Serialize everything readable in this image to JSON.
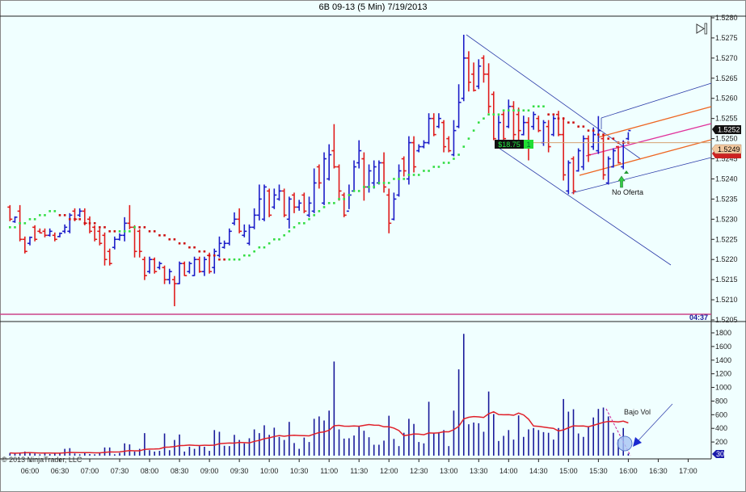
{
  "window": {
    "title": "6B 09-13 (5 Min)  7/19/2013",
    "copyright": "© 2013 NinjaTrader, LLC"
  },
  "colors": {
    "background": "#f0ffff",
    "up_bar": "#1c1cc8",
    "down_bar": "#e01c1c",
    "volume_bar": "#1a1a9a",
    "volume_ma": "#e0202a",
    "trail_up": "#33dd44",
    "trail_down": "#cc1111",
    "session_line": "#cc4488"
  },
  "annotations": {
    "pnl_label": "$18.75",
    "position_qty": "1",
    "last_price_label": "1.5252",
    "entry_price_label": "1.5249",
    "signal_text": "No Oferta",
    "volume_note": "Bajo Vol",
    "bar_timer": "04:37",
    "current_volume_label": "30"
  },
  "chart_data": [
    {
      "type": "ohlc",
      "bar_interval": "5 Min",
      "ylim": [
        1.5205,
        1.528
      ],
      "y_ticks": [
        "1.5280",
        "1.5275",
        "1.5270",
        "1.5265",
        "1.5260",
        "1.5255",
        "1.5250",
        "1.5245",
        "1.5240",
        "1.5235",
        "1.5230",
        "1.5225",
        "1.5220",
        "1.5215",
        "1.5210",
        "1.5205"
      ],
      "x_ticks": [
        "06:00",
        "06:30",
        "07:00",
        "07:30",
        "08:00",
        "08:30",
        "09:00",
        "09:30",
        "10:00",
        "10:30",
        "11:00",
        "11:30",
        "12:00",
        "12:30",
        "13:00",
        "13:30",
        "14:00",
        "14:30",
        "15:00",
        "15:30",
        "16:00",
        "16:30",
        "17:00"
      ],
      "x": [
        "05:40",
        "05:45",
        "05:50",
        "05:55",
        "06:00",
        "06:05",
        "06:10",
        "06:15",
        "06:20",
        "06:25",
        "06:30",
        "06:35",
        "06:40",
        "06:45",
        "06:50",
        "06:55",
        "07:00",
        "07:05",
        "07:10",
        "07:15",
        "07:20",
        "07:25",
        "07:30",
        "07:35",
        "07:40",
        "07:45",
        "07:50",
        "07:55",
        "08:00",
        "08:05",
        "08:10",
        "08:15",
        "08:20",
        "08:25",
        "08:30",
        "08:35",
        "08:40",
        "08:45",
        "08:50",
        "08:55",
        "09:00",
        "09:05",
        "09:10",
        "09:15",
        "09:20",
        "09:25",
        "09:30",
        "09:35",
        "09:40",
        "09:45",
        "09:50",
        "09:55",
        "10:00",
        "10:05",
        "10:10",
        "10:15",
        "10:20",
        "10:25",
        "10:30",
        "10:35",
        "10:40",
        "10:45",
        "10:50",
        "10:55",
        "11:00",
        "11:05",
        "11:10",
        "11:15",
        "11:20",
        "11:25",
        "11:30",
        "11:35",
        "11:40",
        "11:45",
        "11:50",
        "11:55",
        "12:00",
        "12:05",
        "12:10",
        "12:15",
        "12:20",
        "12:25",
        "12:30",
        "12:35",
        "12:40",
        "12:45",
        "12:50",
        "12:55",
        "13:00",
        "13:05",
        "13:10",
        "13:15",
        "13:20",
        "13:25",
        "13:30",
        "13:35",
        "13:40",
        "13:45",
        "13:50",
        "13:55",
        "14:00",
        "14:05",
        "14:10",
        "14:15",
        "14:20",
        "14:25",
        "14:30",
        "14:35",
        "14:40",
        "14:45",
        "14:50",
        "14:55",
        "15:00",
        "15:05",
        "15:10",
        "15:15",
        "15:20",
        "15:25",
        "15:30",
        "15:35",
        "15:40",
        "15:45",
        "15:50",
        "15:55",
        "16:00"
      ],
      "ohlc": [
        [
          1.5233,
          1.52335,
          1.52295,
          1.523
        ],
        [
          1.52294,
          1.52307,
          1.52291,
          1.52305
        ],
        [
          1.5232,
          1.52335,
          1.52245,
          1.5225
        ],
        [
          1.5225,
          1.52257,
          1.52215,
          1.5222
        ],
        [
          1.5224,
          1.52257,
          1.52235,
          1.52255
        ],
        [
          1.5228,
          1.52285,
          1.52245,
          1.5225
        ],
        [
          1.5227,
          1.52277,
          1.52265,
          1.52266
        ],
        [
          1.5227,
          1.52277,
          1.52255,
          1.5226
        ],
        [
          1.5226,
          1.52277,
          1.52257,
          1.5227
        ],
        [
          1.5226,
          1.52267,
          1.52245,
          1.5225
        ],
        [
          1.52257,
          1.52267,
          1.52255,
          1.52265
        ],
        [
          1.5227,
          1.52287,
          1.52265,
          1.5228
        ],
        [
          1.5227,
          1.52315,
          1.52265,
          1.5231
        ],
        [
          1.5232,
          1.52327,
          1.52295,
          1.523
        ],
        [
          1.5231,
          1.52327,
          1.52305,
          1.5232
        ],
        [
          1.5232,
          1.52327,
          1.52285,
          1.5229
        ],
        [
          1.523,
          1.52307,
          1.52265,
          1.5227
        ],
        [
          1.5228,
          1.52285,
          1.52245,
          1.5225
        ],
        [
          1.5227,
          1.52277,
          1.52235,
          1.5224
        ],
        [
          1.5226,
          1.52267,
          1.52185,
          1.522
        ],
        [
          1.5222,
          1.52227,
          1.52185,
          1.5219
        ],
        [
          1.5223,
          1.52257,
          1.52225,
          1.5225
        ],
        [
          1.5225,
          1.52265,
          1.52247,
          1.5226
        ],
        [
          1.5226,
          1.52305,
          1.52245,
          1.5229
        ],
        [
          1.5229,
          1.52335,
          1.52275,
          1.5228
        ],
        [
          1.5228,
          1.52285,
          1.52205,
          1.5222
        ],
        [
          1.5227,
          1.52275,
          1.52205,
          1.5222
        ],
        [
          1.522,
          1.52207,
          1.52149,
          1.5216
        ],
        [
          1.5217,
          1.52207,
          1.52165,
          1.522
        ],
        [
          1.522,
          1.52205,
          1.52165,
          1.5217
        ],
        [
          1.5218,
          1.52195,
          1.52175,
          1.5219
        ],
        [
          1.5218,
          1.52185,
          1.52139,
          1.5215
        ],
        [
          1.5215,
          1.52177,
          1.52139,
          1.5217
        ],
        [
          1.5215,
          1.52159,
          1.52084,
          1.5214
        ],
        [
          1.5214,
          1.52195,
          1.52139,
          1.5219
        ],
        [
          1.5219,
          1.52195,
          1.52159,
          1.5216
        ],
        [
          1.5217,
          1.52195,
          1.52165,
          1.5219
        ],
        [
          1.5216,
          1.52207,
          1.52159,
          1.522
        ],
        [
          1.522,
          1.52207,
          1.52167,
          1.5217
        ],
        [
          1.5217,
          1.52207,
          1.52159,
          1.522
        ],
        [
          1.5221,
          1.52217,
          1.52165,
          1.5217
        ],
        [
          1.5218,
          1.52227,
          1.52165,
          1.5222
        ],
        [
          1.5221,
          1.52257,
          1.52205,
          1.5224
        ],
        [
          1.5223,
          1.52247,
          1.52227,
          1.5224
        ],
        [
          1.5224,
          1.52277,
          1.52235,
          1.5227
        ],
        [
          1.5229,
          1.52317,
          1.52285,
          1.523
        ],
        [
          1.523,
          1.52327,
          1.52265,
          1.5227
        ],
        [
          1.5226,
          1.52287,
          1.52255,
          1.5227
        ],
        [
          1.5224,
          1.52287,
          1.52235,
          1.5228
        ],
        [
          1.5228,
          1.52327,
          1.52275,
          1.5231
        ],
        [
          1.5231,
          1.52386,
          1.52297,
          1.5235
        ],
        [
          1.523,
          1.52386,
          1.52295,
          1.5238
        ],
        [
          1.5237,
          1.52376,
          1.52305,
          1.5231
        ],
        [
          1.5233,
          1.52376,
          1.52325,
          1.5236
        ],
        [
          1.5235,
          1.52386,
          1.52346,
          1.5237
        ],
        [
          1.5237,
          1.52376,
          1.52305,
          1.5231
        ],
        [
          1.523,
          1.52356,
          1.52277,
          1.5235
        ],
        [
          1.5236,
          1.52366,
          1.52315,
          1.5233
        ],
        [
          1.5233,
          1.52348,
          1.52321,
          1.5234
        ],
        [
          1.5236,
          1.52366,
          1.52315,
          1.5232
        ],
        [
          1.5231,
          1.52356,
          1.52305,
          1.5234
        ],
        [
          1.5232,
          1.52426,
          1.52315,
          1.5239
        ],
        [
          1.5243,
          1.52436,
          1.52376,
          1.5239
        ],
        [
          1.5234,
          1.52466,
          1.52335,
          1.5245
        ],
        [
          1.524,
          1.52486,
          1.52396,
          1.5246
        ],
        [
          1.5247,
          1.52536,
          1.52426,
          1.5243
        ],
        [
          1.5243,
          1.52436,
          1.52346,
          1.5237
        ],
        [
          1.5236,
          1.52366,
          1.52305,
          1.5231
        ],
        [
          1.5232,
          1.52386,
          1.52325,
          1.5236
        ],
        [
          1.5237,
          1.52446,
          1.52368,
          1.5243
        ],
        [
          1.5244,
          1.52496,
          1.52426,
          1.5247
        ],
        [
          1.5245,
          1.52466,
          1.52346,
          1.5238
        ],
        [
          1.5238,
          1.52436,
          1.52366,
          1.5242
        ],
        [
          1.5239,
          1.52446,
          1.52376,
          1.5243
        ],
        [
          1.5239,
          1.52446,
          1.52386,
          1.5244
        ],
        [
          1.5244,
          1.52466,
          1.52366,
          1.5238
        ],
        [
          1.5236,
          1.52376,
          1.52265,
          1.5229
        ],
        [
          1.523,
          1.52366,
          1.52297,
          1.5235
        ],
        [
          1.5236,
          1.52436,
          1.52356,
          1.5242
        ],
        [
          1.5245,
          1.52456,
          1.52406,
          1.5242
        ],
        [
          1.524,
          1.52506,
          1.52386,
          1.5249
        ],
        [
          1.5249,
          1.52506,
          1.52416,
          1.5243
        ],
        [
          1.5247,
          1.52486,
          1.52466,
          1.5248
        ],
        [
          1.5248,
          1.52496,
          1.52476,
          1.5249
        ],
        [
          1.5249,
          1.52563,
          1.52486,
          1.5255
        ],
        [
          1.5255,
          1.52563,
          1.52506,
          1.5251
        ],
        [
          1.5253,
          1.52563,
          1.52526,
          1.5255
        ],
        [
          1.5254,
          1.52546,
          1.52466,
          1.5248
        ],
        [
          1.525,
          1.52506,
          1.52466,
          1.5247
        ],
        [
          1.5246,
          1.52546,
          1.52456,
          1.5252
        ],
        [
          1.5253,
          1.52635,
          1.52526,
          1.5259
        ],
        [
          1.526,
          1.52758,
          1.52593,
          1.527
        ],
        [
          1.527,
          1.52717,
          1.52617,
          1.5264
        ],
        [
          1.5266,
          1.52689,
          1.52617,
          1.5262
        ],
        [
          1.5263,
          1.52697,
          1.52623,
          1.5268
        ],
        [
          1.527,
          1.52707,
          1.52639,
          1.5266
        ],
        [
          1.5266,
          1.52687,
          1.52563,
          1.5258
        ],
        [
          1.5261,
          1.52617,
          1.52496,
          1.525
        ],
        [
          1.5249,
          1.52557,
          1.52488,
          1.5254
        ],
        [
          1.5256,
          1.52567,
          1.52482,
          1.525
        ],
        [
          1.5253,
          1.52597,
          1.52526,
          1.5258
        ],
        [
          1.5258,
          1.52593,
          1.52488,
          1.5251
        ],
        [
          1.5256,
          1.52577,
          1.52496,
          1.5252
        ],
        [
          1.5251,
          1.52557,
          1.52508,
          1.5254
        ],
        [
          1.5254,
          1.52553,
          1.52446,
          1.5248
        ],
        [
          1.5253,
          1.52567,
          1.52522,
          1.5256
        ],
        [
          1.5255,
          1.52557,
          1.52516,
          1.5252
        ],
        [
          1.5249,
          1.52546,
          1.52482,
          1.5254
        ],
        [
          1.5253,
          1.52546,
          1.52466,
          1.5248
        ],
        [
          1.5251,
          1.52557,
          1.52506,
          1.5255
        ],
        [
          1.5256,
          1.52569,
          1.52506,
          1.5251
        ],
        [
          1.5251,
          1.52553,
          1.52396,
          1.5241
        ],
        [
          1.5237,
          1.52446,
          1.52362,
          1.5244
        ],
        [
          1.5245,
          1.52456,
          1.52362,
          1.5237
        ],
        [
          1.5242,
          1.52476,
          1.52418,
          1.5247
        ],
        [
          1.5243,
          1.52508,
          1.52422,
          1.525
        ],
        [
          1.525,
          1.52508,
          1.52442,
          1.5246
        ],
        [
          1.5248,
          1.52528,
          1.52472,
          1.5251
        ],
        [
          1.5247,
          1.52556,
          1.52462,
          1.5252
        ],
        [
          1.525,
          1.52508,
          1.52398,
          1.5241
        ],
        [
          1.5239,
          1.52456,
          1.52386,
          1.5245
        ],
        [
          1.5243,
          1.52476,
          1.52428,
          1.5247
        ],
        [
          1.5248,
          1.52482,
          1.52438,
          1.5244
        ],
        [
          1.5243,
          1.52496,
          1.52424,
          1.5249
        ],
        [
          1.525,
          1.52516,
          1.52496,
          1.5252
        ]
      ],
      "trailing_stop": [
        1.5228,
        1.5228,
        1.5229,
        1.5229,
        1.523,
        1.523,
        1.5231,
        1.5231,
        1.5232,
        1.5232,
        1.5231,
        1.5231,
        1.523,
        1.523,
        1.523,
        1.5229,
        1.5229,
        1.5229,
        1.5228,
        1.5228,
        1.5227,
        1.5227,
        1.5227,
        1.5227,
        1.5227,
        1.5228,
        1.5228,
        1.5228,
        1.5227,
        1.5227,
        1.5226,
        1.5226,
        1.5225,
        1.5225,
        1.5224,
        1.5224,
        1.5223,
        1.5223,
        1.5222,
        1.5222,
        1.5221,
        1.5221,
        1.522,
        1.522,
        1.522,
        1.522,
        1.522,
        1.5221,
        1.5221,
        1.5222,
        1.5223,
        1.5223,
        1.5224,
        1.5225,
        1.5225,
        1.5226,
        1.5227,
        1.5228,
        1.5229,
        1.5229,
        1.523,
        1.5231,
        1.5232,
        1.5233,
        1.5234,
        1.5234,
        1.5235,
        1.5235,
        1.5236,
        1.5237,
        1.5237,
        1.5238,
        1.5238,
        1.5238,
        1.5239,
        1.5239,
        1.5239,
        1.524,
        1.524,
        1.524,
        1.5241,
        1.5241,
        1.5241,
        1.5242,
        1.5242,
        1.5243,
        1.5243,
        1.5244,
        1.5244,
        1.5245,
        1.5246,
        1.5248,
        1.525,
        1.5252,
        1.5254,
        1.5255,
        1.5256,
        1.5256,
        1.5256,
        1.5257,
        1.5257,
        1.5257,
        1.5257,
        1.5257,
        1.5257,
        1.5258,
        1.5258,
        1.5258,
        1.5256,
        1.5256,
        1.5255,
        1.5255,
        1.5254,
        1.5254,
        1.5253,
        1.5253,
        1.5252,
        1.5252,
        1.5251,
        1.5251,
        1.525,
        1.525,
        1.5249,
        1.5249,
        1.5249
      ],
      "trailing_stop_trend": [
        {
          "from": 1,
          "to": 10,
          "trend": "up"
        },
        {
          "from": 11,
          "to": 22,
          "trend": "down"
        },
        {
          "from": 23,
          "to": 26,
          "trend": "up"
        },
        {
          "from": 27,
          "to": 44,
          "trend": "down"
        },
        {
          "from": 45,
          "to": 108,
          "trend": "up"
        },
        {
          "from": 109,
          "to": 125,
          "trend": "down"
        }
      ],
      "last_price": 1.5252,
      "entry_price": 1.5249
    },
    {
      "type": "bar",
      "ylim": [
        0,
        1800
      ],
      "y_ticks": [
        "1800",
        "1600",
        "1400",
        "1200",
        "1000",
        "800",
        "600",
        "400",
        "200"
      ],
      "values": [
        40,
        32,
        40,
        60,
        48,
        32,
        20,
        40,
        24,
        32,
        32,
        100,
        110,
        32,
        20,
        40,
        24,
        20,
        48,
        120,
        120,
        20,
        40,
        180,
        165,
        60,
        100,
        330,
        80,
        60,
        70,
        325,
        80,
        230,
        310,
        60,
        130,
        100,
        140,
        130,
        70,
        375,
        350,
        145,
        140,
        305,
        230,
        180,
        255,
        385,
        330,
        445,
        305,
        410,
        275,
        230,
        495,
        185,
        100,
        265,
        200,
        540,
        575,
        515,
        660,
        1380,
        385,
        250,
        255,
        295,
        425,
        365,
        270,
        160,
        160,
        220,
        585,
        245,
        140,
        335,
        540,
        465,
        200,
        180,
        790,
        330,
        345,
        375,
        140,
        660,
        1265,
        1785,
        460,
        485,
        475,
        350,
        940,
        610,
        215,
        290,
        375,
        235,
        590,
        275,
        385,
        405,
        375,
        345,
        335,
        235,
        405,
        830,
        645,
        680,
        325,
        275,
        425,
        560,
        685,
        705,
        575,
        335,
        235,
        405,
        30
      ],
      "moving_average_period": 14
    }
  ]
}
